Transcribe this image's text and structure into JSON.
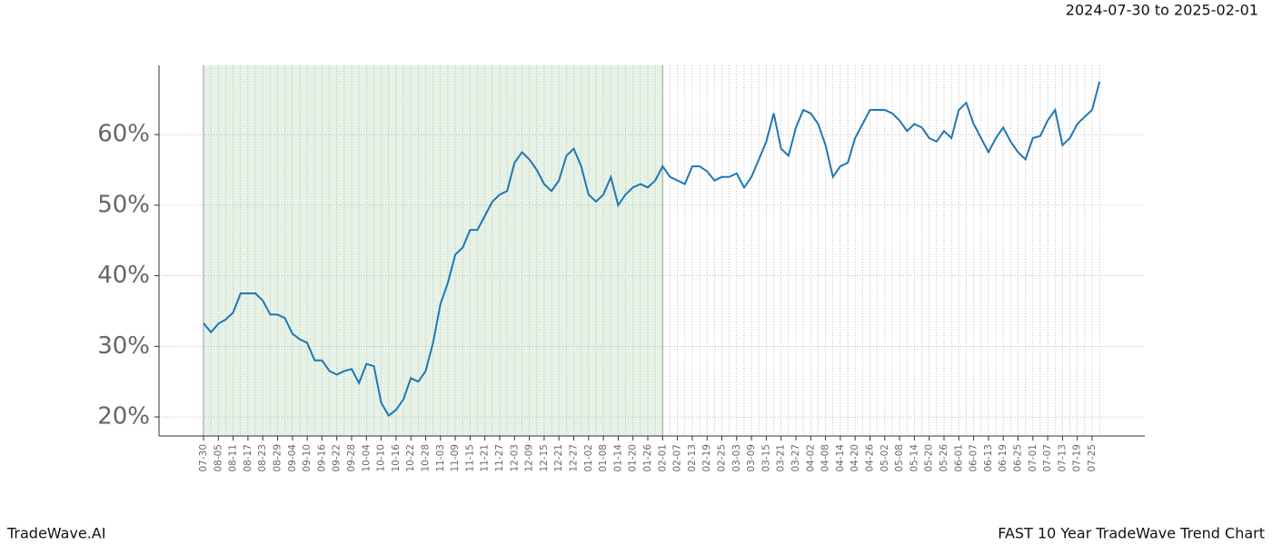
{
  "chart_data": {
    "type": "line",
    "date_range": "2024-07-30 to 2025-02-01",
    "brand": "TradeWave.AI",
    "title": "FAST 10 Year TradeWave Trend Chart",
    "categories": [
      "07-30",
      null,
      "08-05",
      null,
      "08-11",
      null,
      "08-17",
      null,
      "08-23",
      null,
      "08-29",
      null,
      "09-04",
      null,
      "09-10",
      null,
      "09-16",
      null,
      "09-22",
      null,
      "09-28",
      null,
      "10-04",
      null,
      "10-10",
      null,
      "10-16",
      null,
      "10-22",
      null,
      "10-28",
      null,
      "11-03",
      null,
      "11-09",
      null,
      "11-15",
      null,
      "11-21",
      null,
      "11-27",
      null,
      "12-03",
      null,
      "12-09",
      null,
      "12-15",
      null,
      "12-21",
      null,
      "12-27",
      null,
      "01-02",
      null,
      "01-08",
      null,
      "01-14",
      null,
      "01-20",
      null,
      "01-26",
      null,
      "02-01",
      null,
      "02-07",
      null,
      "02-13",
      null,
      "02-19",
      null,
      "02-25",
      null,
      "03-03",
      null,
      "03-09",
      null,
      "03-15",
      null,
      "03-21",
      null,
      "03-27",
      null,
      "04-02",
      null,
      "04-08",
      null,
      "04-14",
      null,
      "04-20",
      null,
      "04-26",
      null,
      "05-02",
      null,
      "05-08",
      null,
      "05-14",
      null,
      "05-20",
      null,
      "05-26",
      null,
      "06-01",
      null,
      "06-07",
      null,
      "06-13",
      null,
      "06-19",
      null,
      "06-25",
      null,
      "07-01",
      null,
      "07-07",
      null,
      "07-13",
      null,
      "07-19",
      null,
      "07-25",
      null
    ],
    "values": [
      33.3,
      32.0,
      33.2,
      33.8,
      34.8,
      37.5,
      37.5,
      37.5,
      36.5,
      34.5,
      34.5,
      34.0,
      31.8,
      31.0,
      30.5,
      28.0,
      28.0,
      26.5,
      26.0,
      26.5,
      26.8,
      24.8,
      27.5,
      27.2,
      22.0,
      20.2,
      21.0,
      22.5,
      25.5,
      25.0,
      26.5,
      30.5,
      36.0,
      39.0,
      43.0,
      44.0,
      46.5,
      46.5,
      48.5,
      50.5,
      51.5,
      52.0,
      56.0,
      57.5,
      56.5,
      55.0,
      53.0,
      52.0,
      53.5,
      57.0,
      58.0,
      55.5,
      51.5,
      50.5,
      51.5,
      54.0,
      50.0,
      51.5,
      52.5,
      53.0,
      52.5,
      53.5,
      55.5,
      54.0,
      53.5,
      53.0,
      55.5,
      55.5,
      54.8,
      53.5,
      54.0,
      54.0,
      54.5,
      52.5,
      54.0,
      56.5,
      59.0,
      63.0,
      58.0,
      57.0,
      61.0,
      63.5,
      63.0,
      61.5,
      58.5,
      54.0,
      55.5,
      56.0,
      59.5,
      61.5,
      63.5,
      63.5,
      63.5,
      63.0,
      62.0,
      60.5,
      61.5,
      61.0,
      59.5,
      59.0,
      60.5,
      59.5,
      63.5,
      64.5,
      61.5,
      59.5,
      57.5,
      59.5,
      61.0,
      59.0,
      57.5,
      56.5,
      59.5,
      59.8,
      62.0,
      63.5,
      58.5,
      59.5,
      61.5,
      62.5,
      63.5,
      67.5
    ],
    "color": "#1f77b4",
    "shade_color": "#e6f2e6",
    "ylim": [
      17.3,
      69.8
    ],
    "yticks": [
      {
        "value": 20,
        "label": "20%"
      },
      {
        "value": 30,
        "label": "30%"
      },
      {
        "value": 40,
        "label": "40%"
      },
      {
        "value": 50,
        "label": "50%"
      },
      {
        "value": 60,
        "label": "60%"
      }
    ],
    "grid": true
  }
}
